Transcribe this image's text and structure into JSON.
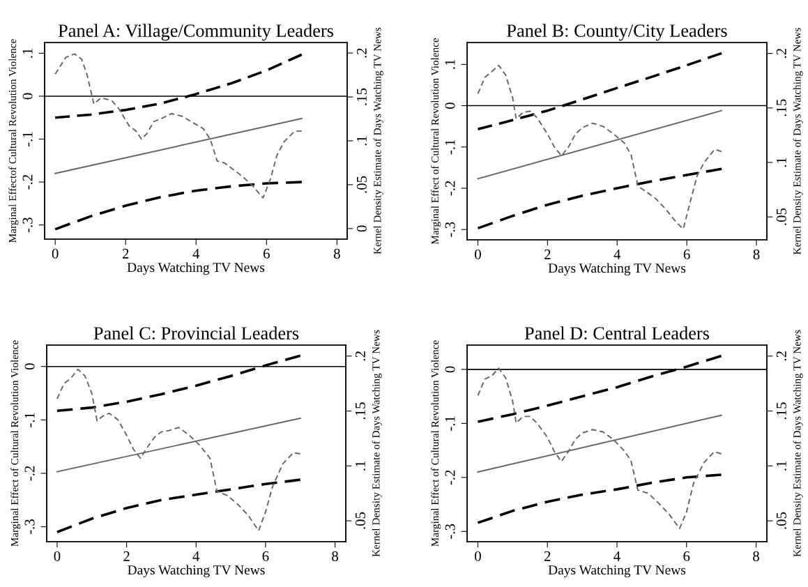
{
  "chart_data": [
    {
      "type": "line",
      "title": "Panel A: Village/Community Leaders",
      "xlabel": "Days Watching TV News",
      "ylabel": "Marginal Effectof Cultural Revolution Violence",
      "y2label": "Kernel Density Estimate of Days Watching TV News",
      "xlim": [
        -0.3,
        8.29
      ],
      "xticks": [
        0,
        2,
        4,
        6,
        8
      ],
      "ylim": [
        -0.333,
        0.125
      ],
      "yticks": [
        {
          "value": -0.3,
          "label": "-.3"
        },
        {
          "value": -0.2,
          "label": "-.2"
        },
        {
          "value": -0.1,
          "label": "-.1"
        },
        0,
        {
          "value": 0.1,
          "label": ".1"
        }
      ],
      "y2lim": [
        -0.012,
        0.212
      ],
      "y2ticks": [
        0,
        {
          "value": 0.05,
          "label": ".05"
        },
        {
          "value": 0.1,
          "label": ".1"
        },
        {
          "value": 0.15,
          "label": ".15"
        },
        {
          "value": 0.2,
          "label": ".2"
        }
      ],
      "grid": false,
      "legend": false,
      "ref_lines": [
        {
          "axis": "y",
          "value": 0,
          "color": "#000000",
          "line_style": "solid"
        }
      ],
      "series": [
        {
          "color": "#666666",
          "line_style": "solid",
          "x": [
            0,
            7
          ],
          "values": [
            -0.18,
            -0.052
          ]
        },
        {
          "color": "#000000",
          "line_style": "dashed",
          "x": [
            0,
            1,
            2,
            3,
            4,
            5,
            6,
            7
          ],
          "values": [
            -0.05,
            -0.043,
            -0.032,
            -0.017,
            0.005,
            0.03,
            0.06,
            0.097
          ]
        },
        {
          "color": "#000000",
          "line_style": "dashed",
          "x": [
            0,
            1,
            2,
            3,
            4,
            5,
            6,
            7
          ],
          "values": [
            -0.31,
            -0.28,
            -0.255,
            -0.235,
            -0.22,
            -0.21,
            -0.203,
            -0.2
          ]
        },
        {
          "color": "#666666",
          "line_style": "dotted",
          "axis": "y2",
          "x": [
            0,
            0.3,
            0.55,
            0.75,
            0.9,
            1.1,
            1.3,
            1.6,
            1.8,
            2.1,
            2.3,
            2.45,
            2.6,
            2.8,
            3.0,
            3.3,
            3.6,
            3.9,
            4.2,
            4.4,
            4.6,
            4.8,
            5.0,
            5.3,
            5.6,
            5.9,
            6.1,
            6.3,
            6.5,
            6.8,
            7.0
          ],
          "values": [
            0.176,
            0.195,
            0.199,
            0.193,
            0.176,
            0.142,
            0.149,
            0.146,
            0.137,
            0.117,
            0.111,
            0.102,
            0.108,
            0.122,
            0.125,
            0.131,
            0.128,
            0.121,
            0.114,
            0.102,
            0.077,
            0.075,
            0.069,
            0.06,
            0.049,
            0.035,
            0.055,
            0.084,
            0.099,
            0.111,
            0.111
          ]
        }
      ]
    },
    {
      "type": "line",
      "title": "Panel B: County/City Leaders",
      "xlabel": "Days Watching TV News",
      "ylabel": "Marginal Effect of Cultural Revolution Violence",
      "y2label": "Kernel Density Estimate of Days Watching TV News",
      "xlim": [
        -0.31,
        8.3
      ],
      "xticks": [
        0,
        2,
        4,
        6,
        8
      ],
      "ylim": [
        -0.325,
        0.153
      ],
      "yticks": [
        {
          "value": -0.3,
          "label": "-.3"
        },
        {
          "value": -0.2,
          "label": "-.2"
        },
        {
          "value": -0.1,
          "label": "-.1"
        },
        0,
        {
          "value": 0.1,
          "label": ".1"
        }
      ],
      "y2lim": [
        0.029,
        0.21
      ],
      "y2ticks": [
        {
          "value": 0.05,
          "label": ".05"
        },
        {
          "value": 0.1,
          "label": ".1"
        },
        {
          "value": 0.15,
          "label": ".15"
        },
        {
          "value": 0.2,
          "label": ".2"
        }
      ],
      "grid": false,
      "legend": false,
      "ref_lines": [
        {
          "axis": "y",
          "value": 0,
          "color": "#000000",
          "line_style": "solid"
        }
      ],
      "series": [
        {
          "color": "#666666",
          "line_style": "solid",
          "x": [
            0,
            7
          ],
          "values": [
            -0.177,
            -0.012
          ]
        },
        {
          "color": "#000000",
          "line_style": "dashed",
          "x": [
            0,
            1,
            2,
            3,
            4,
            5,
            6,
            7
          ],
          "values": [
            -0.057,
            -0.035,
            -0.012,
            0.015,
            0.043,
            0.07,
            0.098,
            0.127
          ]
        },
        {
          "color": "#000000",
          "line_style": "dashed",
          "x": [
            0,
            1,
            2,
            3,
            4,
            5,
            6,
            7
          ],
          "values": [
            -0.297,
            -0.267,
            -0.24,
            -0.218,
            -0.2,
            -0.183,
            -0.168,
            -0.153
          ]
        },
        {
          "color": "#666666",
          "line_style": "dotted",
          "axis": "y2",
          "x": [
            0,
            0.2,
            0.35,
            0.6,
            0.8,
            1.0,
            1.1,
            1.3,
            1.5,
            1.7,
            2.0,
            2.2,
            2.4,
            2.6,
            2.8,
            3.0,
            3.3,
            3.6,
            3.9,
            4.2,
            4.4,
            4.6,
            4.8,
            5.1,
            5.4,
            5.7,
            5.9,
            6.1,
            6.3,
            6.5,
            6.8,
            7.0
          ],
          "values": [
            0.163,
            0.178,
            0.182,
            0.189,
            0.18,
            0.159,
            0.14,
            0.146,
            0.147,
            0.141,
            0.126,
            0.114,
            0.106,
            0.114,
            0.126,
            0.132,
            0.136,
            0.133,
            0.126,
            0.118,
            0.107,
            0.078,
            0.074,
            0.067,
            0.057,
            0.045,
            0.039,
            0.064,
            0.088,
            0.1,
            0.112,
            0.11
          ]
        }
      ]
    },
    {
      "type": "line",
      "title": "Panel C: Provincial Leaders",
      "xlabel": "Days Watching TV News",
      "ylabel": "Marginal Effect of Cultural Revolution Violence",
      "y2label": "Kernel Density Estimate of Days Watching TV News",
      "xlim": [
        -0.3,
        8.31
      ],
      "xticks": [
        0,
        2,
        4,
        6,
        8
      ],
      "ylim": [
        -0.328,
        0.04
      ],
      "yticks": [
        {
          "value": -0.3,
          "label": "-.3"
        },
        {
          "value": -0.2,
          "label": "-.2"
        },
        {
          "value": -0.1,
          "label": "-.1"
        },
        0
      ],
      "y2lim": [
        0.031,
        0.21
      ],
      "y2ticks": [
        {
          "value": 0.05,
          "label": ".05"
        },
        {
          "value": 0.1,
          "label": ".1"
        },
        {
          "value": 0.15,
          "label": ".15"
        },
        {
          "value": 0.2,
          "label": ".2"
        }
      ],
      "grid": false,
      "legend": false,
      "ref_lines": [
        {
          "axis": "y",
          "value": 0,
          "color": "#000000",
          "line_style": "solid"
        }
      ],
      "series": [
        {
          "color": "#666666",
          "line_style": "solid",
          "x": [
            0,
            7
          ],
          "values": [
            -0.197,
            -0.097
          ]
        },
        {
          "color": "#000000",
          "line_style": "dashed",
          "x": [
            0,
            1,
            2,
            3,
            4,
            5,
            6,
            7
          ],
          "values": [
            -0.083,
            -0.077,
            -0.066,
            -0.052,
            -0.036,
            -0.018,
            0.002,
            0.02
          ]
        },
        {
          "color": "#000000",
          "line_style": "dashed",
          "x": [
            0,
            1,
            2,
            3,
            4,
            5,
            6,
            7
          ],
          "values": [
            -0.31,
            -0.285,
            -0.265,
            -0.25,
            -0.24,
            -0.23,
            -0.22,
            -0.212
          ]
        },
        {
          "color": "#666666",
          "line_style": "dotted",
          "axis": "y2",
          "x": [
            0,
            0.2,
            0.4,
            0.6,
            0.8,
            1.0,
            1.15,
            1.3,
            1.5,
            1.75,
            2.0,
            2.2,
            2.4,
            2.6,
            2.8,
            3.0,
            3.2,
            3.5,
            3.8,
            4.1,
            4.4,
            4.6,
            4.9,
            5.2,
            5.5,
            5.8,
            6.0,
            6.2,
            6.5,
            6.8,
            7.0
          ],
          "values": [
            0.161,
            0.175,
            0.18,
            0.188,
            0.182,
            0.166,
            0.141,
            0.145,
            0.148,
            0.142,
            0.128,
            0.115,
            0.107,
            0.117,
            0.126,
            0.131,
            0.132,
            0.135,
            0.128,
            0.119,
            0.107,
            0.077,
            0.073,
            0.065,
            0.055,
            0.041,
            0.058,
            0.081,
            0.102,
            0.112,
            0.111
          ]
        }
      ]
    },
    {
      "type": "line",
      "title": "Panel D: Central Leaders",
      "xlabel": "Days Watching TV News",
      "ylabel": "Marginal Effect of Cultural Revolution Violence",
      "y2label": "Kernel Density Estimate of Days Watching TV News",
      "xlim": [
        -0.31,
        8.31
      ],
      "xticks": [
        0,
        2,
        4,
        6,
        8
      ],
      "ylim": [
        -0.319,
        0.045
      ],
      "yticks": [
        {
          "value": -0.3,
          "label": "-.3"
        },
        {
          "value": -0.2,
          "label": "-.2"
        },
        {
          "value": -0.1,
          "label": "-.1"
        },
        0
      ],
      "y2lim": [
        0.031,
        0.21
      ],
      "y2ticks": [
        {
          "value": 0.05,
          "label": ".05"
        },
        {
          "value": 0.1,
          "label": ".1"
        },
        {
          "value": 0.15,
          "label": ".15"
        },
        {
          "value": 0.2,
          "label": ".2"
        }
      ],
      "grid": false,
      "legend": false,
      "ref_lines": [
        {
          "axis": "y",
          "value": 0,
          "color": "#000000",
          "line_style": "solid"
        }
      ],
      "series": [
        {
          "color": "#666666",
          "line_style": "solid",
          "x": [
            0,
            7
          ],
          "values": [
            -0.19,
            -0.085
          ]
        },
        {
          "color": "#000000",
          "line_style": "dashed",
          "x": [
            0,
            1,
            2,
            3,
            4,
            5,
            6,
            7
          ],
          "values": [
            -0.097,
            -0.083,
            -0.067,
            -0.05,
            -0.033,
            -0.013,
            0.005,
            0.025
          ]
        },
        {
          "color": "#000000",
          "line_style": "dashed",
          "x": [
            0,
            1,
            2,
            3,
            4,
            5,
            6,
            7
          ],
          "values": [
            -0.284,
            -0.262,
            -0.245,
            -0.232,
            -0.222,
            -0.21,
            -0.2,
            -0.195
          ]
        },
        {
          "color": "#666666",
          "line_style": "dotted",
          "axis": "y2",
          "x": [
            0,
            0.2,
            0.4,
            0.6,
            0.8,
            1.0,
            1.1,
            1.3,
            1.5,
            1.7,
            2.0,
            2.2,
            2.4,
            2.6,
            2.8,
            3.0,
            3.3,
            3.6,
            3.9,
            4.2,
            4.4,
            4.6,
            4.9,
            5.2,
            5.5,
            5.8,
            6.0,
            6.2,
            6.5,
            6.8,
            7.0
          ],
          "values": [
            0.164,
            0.179,
            0.182,
            0.189,
            0.18,
            0.159,
            0.139,
            0.145,
            0.145,
            0.139,
            0.126,
            0.113,
            0.104,
            0.113,
            0.124,
            0.13,
            0.133,
            0.131,
            0.124,
            0.114,
            0.105,
            0.078,
            0.075,
            0.066,
            0.056,
            0.043,
            0.058,
            0.084,
            0.103,
            0.113,
            0.111
          ]
        }
      ]
    }
  ]
}
